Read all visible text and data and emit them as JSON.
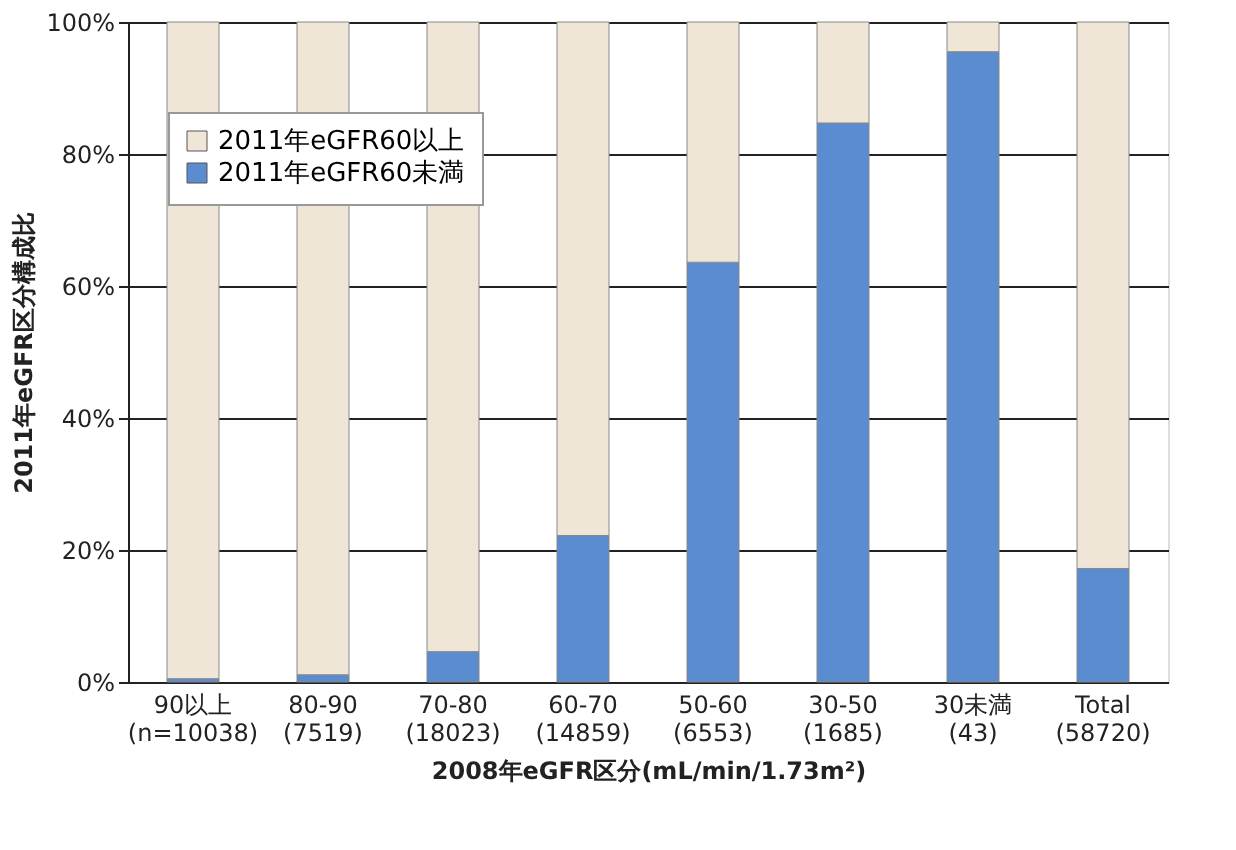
{
  "chart_data": {
    "type": "bar",
    "stacked": true,
    "xlabel": "2008年eGFR区分(mL/min/1.73m²)",
    "ylabel": "2011年eGFR区分構成比",
    "categories": [
      "90以上\n(n=10038)",
      "80-90\n(7519)",
      "70-80\n(18023)",
      "60-70\n(14859)",
      "50-60\n(6553)",
      "30-50\n(1685)",
      "30未満\n(43)",
      "Total\n(58720)"
    ],
    "series": [
      {
        "name": "2011年eGFR60未満",
        "color": "#5b8ccf",
        "values": [
          0.5,
          1.1,
          4.6,
          22.2,
          63.6,
          84.7,
          95.5,
          17.2
        ]
      },
      {
        "name": "2011年eGFR60以上",
        "color": "#efe6d8",
        "values": [
          99.5,
          98.9,
          95.4,
          77.8,
          36.4,
          15.3,
          4.5,
          82.8
        ]
      }
    ],
    "ylim": [
      0,
      100
    ],
    "yticks": [
      {
        "value": 0,
        "label": "0%"
      },
      {
        "value": 20,
        "label": "20%"
      },
      {
        "value": 40,
        "label": "40%"
      },
      {
        "value": 60,
        "label": "60%"
      },
      {
        "value": 80,
        "label": "80%"
      },
      {
        "value": 100,
        "label": "100%"
      }
    ],
    "grid": "y",
    "legend": "top left"
  }
}
